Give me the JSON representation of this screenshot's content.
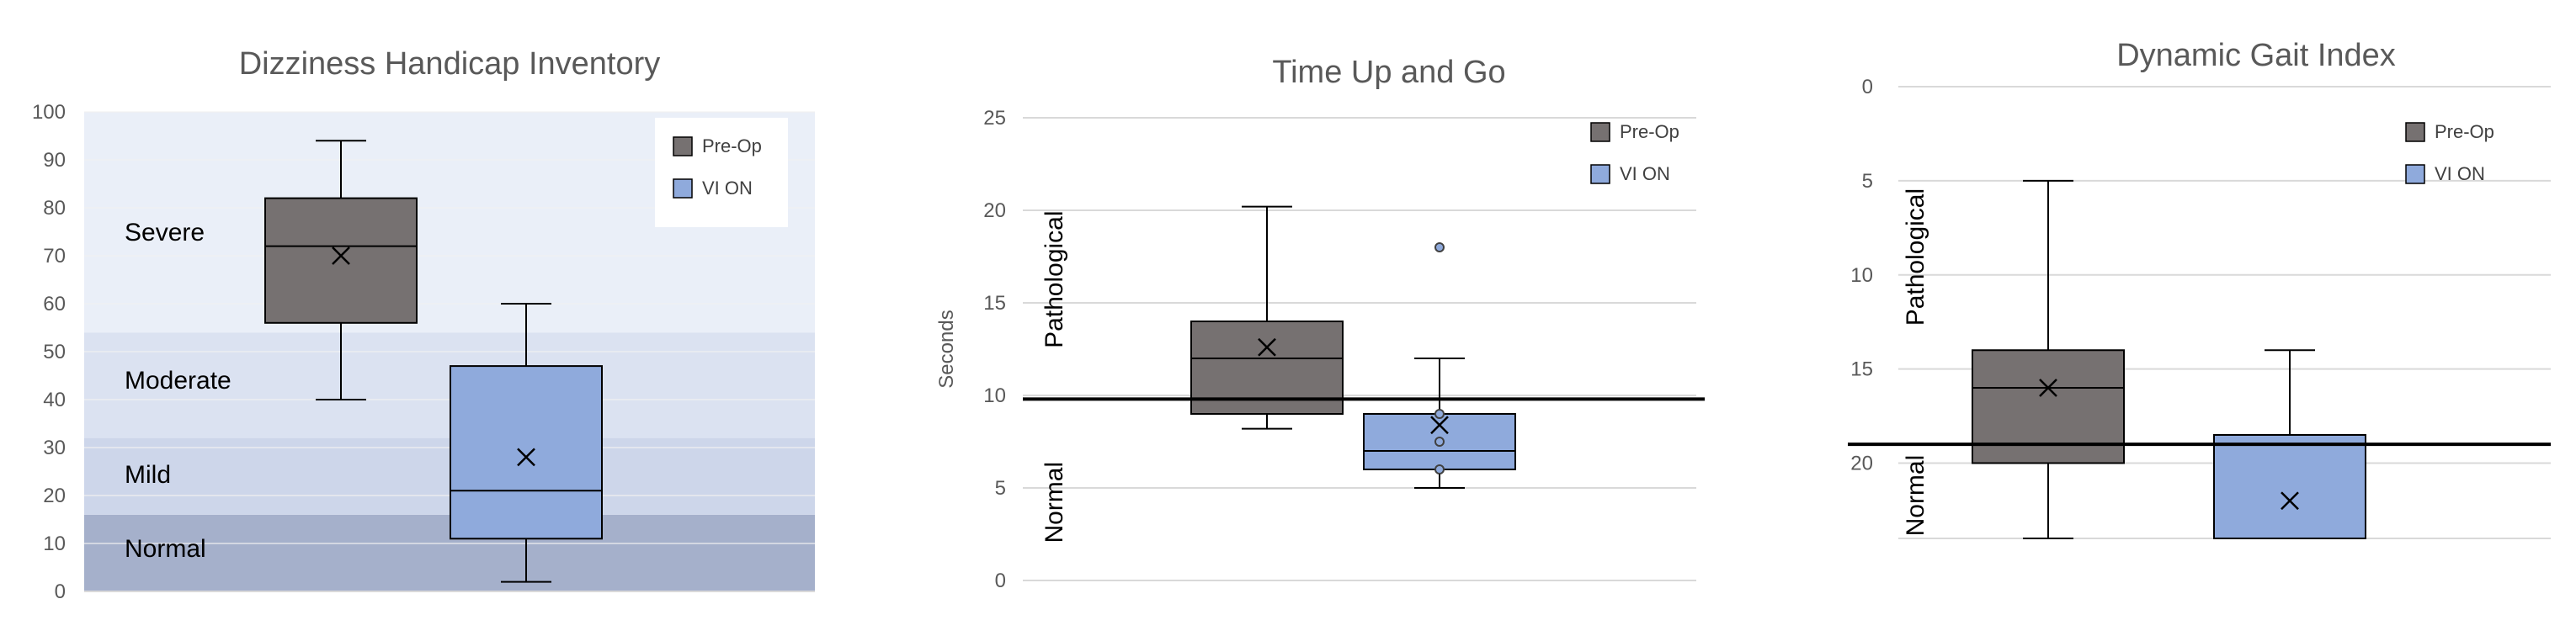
{
  "chart_data": [
    {
      "type": "box",
      "title": "Dizziness Handicap Inventory",
      "ylim": [
        0,
        100
      ],
      "yticks": [
        0,
        10,
        20,
        30,
        40,
        50,
        60,
        70,
        80,
        90,
        100
      ],
      "ylabel": "",
      "legend": {
        "placement": "top-right",
        "entries": [
          "Pre-Op",
          "VI ON"
        ]
      },
      "bands": [
        {
          "label": "Normal",
          "from": 0,
          "to": 16,
          "color": "#a5b0cb"
        },
        {
          "label": "Mild",
          "from": 16,
          "to": 32,
          "color": "#cdd6ea"
        },
        {
          "label": "Moderate",
          "from": 32,
          "to": 54,
          "color": "#dbe2f1"
        },
        {
          "label": "Severe",
          "from": 54,
          "to": 100,
          "color": "#eaeff8"
        }
      ],
      "series": [
        {
          "name": "Pre-Op",
          "color": "#767171",
          "min": 40,
          "q1": 56,
          "median": 72,
          "q3": 82,
          "max": 94,
          "mean": 70,
          "outliers": []
        },
        {
          "name": "VI ON",
          "color": "#8faadc",
          "min": 2,
          "q1": 11,
          "median": 21,
          "q3": 47,
          "max": 60,
          "mean": 28,
          "outliers": []
        }
      ]
    },
    {
      "type": "box",
      "title": "Time Up and Go",
      "ylim": [
        0,
        25
      ],
      "yticks": [
        0,
        5,
        10,
        15,
        20,
        25
      ],
      "ylabel": "Seconds",
      "legend": {
        "placement": "top-right",
        "entries": [
          "Pre-Op",
          "VI ON"
        ]
      },
      "threshold": 9.8,
      "region_labels": {
        "above": "Pathological",
        "below": "Normal"
      },
      "series": [
        {
          "name": "Pre-Op",
          "color": "#767171",
          "min": 8.2,
          "q1": 9.0,
          "median": 12.0,
          "q3": 14.0,
          "max": 20.2,
          "mean": 12.6,
          "outliers": []
        },
        {
          "name": "VI ON",
          "color": "#8faadc",
          "min": 5.0,
          "q1": 6.0,
          "median": 7.0,
          "q3": 9.0,
          "max": 12.0,
          "mean": 8.4,
          "outliers": [
            18.0,
            9.0,
            7.5,
            6.0
          ]
        }
      ]
    },
    {
      "type": "box",
      "title": "Dynamic Gait Index",
      "ylim": [
        0,
        24
      ],
      "y_inverted": true,
      "yticks": [
        0,
        5,
        10,
        15,
        20
      ],
      "ylabel": "",
      "legend": {
        "placement": "top-right",
        "entries": [
          "Pre-Op",
          "VI ON"
        ]
      },
      "threshold": 19,
      "region_labels": {
        "above": "Pathological",
        "below": "Normal"
      },
      "series": [
        {
          "name": "Pre-Op",
          "color": "#767171",
          "min": 5,
          "q1": 14,
          "median": 16,
          "q3": 20,
          "max": 24,
          "mean": 16,
          "outliers": []
        },
        {
          "name": "VI ON",
          "color": "#8faadc",
          "min": 14,
          "q1": 18.5,
          "median": 18.5,
          "q3": 24,
          "max": 24,
          "mean": 22,
          "outliers": []
        }
      ]
    }
  ]
}
